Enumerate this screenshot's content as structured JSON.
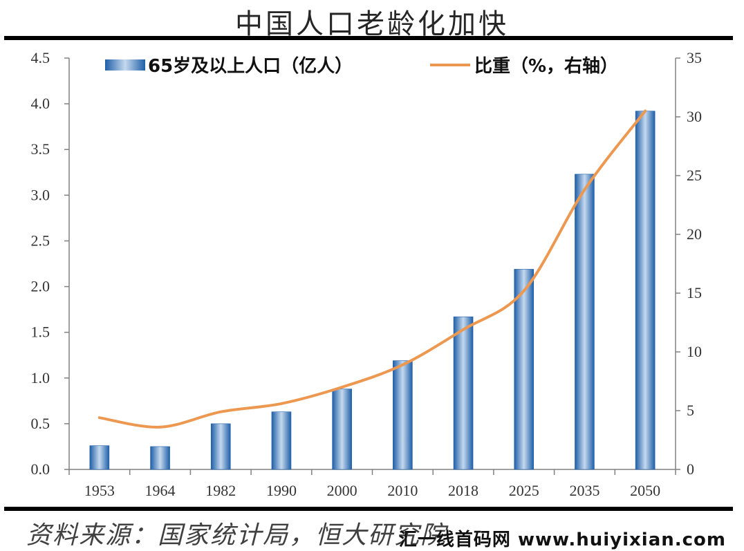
{
  "title": "中国人口老龄化加快",
  "source_text": "资料来源：国家统计局，恒大研究院",
  "watermark_text": "汇一线首码网 www.huiyixian.com",
  "colors": {
    "bar": "#2e6fb6",
    "bar_light": "#c5d9ee",
    "line": "#ed9850",
    "axis": "#808080"
  },
  "chart_data": {
    "type": "bar",
    "categories": [
      "1953",
      "1964",
      "1982",
      "1990",
      "2000",
      "2010",
      "2018",
      "2025",
      "2035",
      "2050"
    ],
    "series": [
      {
        "name": "65岁及以上人口（亿人）",
        "type": "bar",
        "axis": "left",
        "values": [
          0.26,
          0.25,
          0.5,
          0.63,
          0.88,
          1.19,
          1.67,
          2.19,
          3.23,
          3.92
        ]
      },
      {
        "name": "比重（%，右轴）",
        "type": "line",
        "axis": "right",
        "values": [
          4.4,
          3.6,
          4.9,
          5.6,
          7.0,
          8.9,
          11.9,
          15.2,
          23.8,
          30.5
        ]
      }
    ],
    "y_left": {
      "min": 0,
      "max": 4.5,
      "ticks": [
        "0.0",
        "0.5",
        "1.0",
        "1.5",
        "2.0",
        "2.5",
        "3.0",
        "3.5",
        "4.0",
        "4.5"
      ]
    },
    "y_right": {
      "min": 0,
      "max": 35,
      "ticks": [
        "0",
        "5",
        "10",
        "15",
        "20",
        "25",
        "30",
        "35"
      ]
    },
    "legend_position": "top",
    "grid": false
  }
}
